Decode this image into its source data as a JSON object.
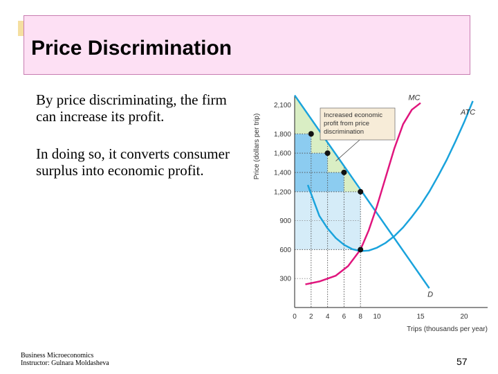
{
  "slide": {
    "title": "Price Discrimination",
    "paragraph1": "By price discriminating, the firm can increase its profit.",
    "paragraph2": "In doing so, it converts consumer surplus into economic profit.",
    "footer_line1": "Business Microeconomics",
    "footer_line2": "Instructor: Gulnara Moldasheva",
    "page_number": "57"
  },
  "colors": {
    "title_box": "#fde0f4",
    "accent": "#f5dfa0",
    "demand": "#1aa3dc",
    "atc": "#1aa3dc",
    "mc": "#e0157d",
    "profit_fill": "#7fc6ee",
    "extra_profit": "#d9eec4",
    "revenue_fill": "#d5ecf8"
  },
  "chart_data": {
    "type": "line",
    "xlabel": "Trips (thousands per year)",
    "ylabel": "Price (dollars per trip)",
    "x_ticks": [
      0,
      2,
      4,
      6,
      8,
      10,
      15,
      20
    ],
    "y_ticks": [
      300,
      600,
      900,
      1200,
      1400,
      1600,
      1800,
      2100
    ],
    "y_tick_labels": [
      "300",
      "600",
      "900",
      "1,200",
      "1,400",
      "1,600",
      "1,800",
      "2,100"
    ],
    "xlim": [
      0,
      22
    ],
    "ylim": [
      0,
      2300
    ],
    "series": [
      {
        "name": "D",
        "x": [
          0,
          16
        ],
        "y": [
          2200,
          200
        ]
      },
      {
        "name": "MC",
        "x": [
          1.3,
          3,
          5,
          6.5,
          8,
          9,
          10,
          11,
          12,
          13,
          14,
          15
        ],
        "y": [
          240,
          270,
          330,
          430,
          600,
          800,
          1050,
          1350,
          1650,
          1900,
          2050,
          2120
        ]
      },
      {
        "name": "ATC",
        "x": [
          1.6,
          3,
          4,
          5,
          6,
          7,
          8,
          9,
          10,
          11,
          12,
          13,
          14,
          15,
          16,
          17,
          18,
          19,
          20,
          21
        ],
        "y": [
          1270,
          950,
          820,
          720,
          650,
          605,
          585,
          590,
          620,
          670,
          740,
          830,
          940,
          1060,
          1200,
          1360,
          1530,
          1720,
          1920,
          2140
        ]
      }
    ],
    "price_points": [
      {
        "x": 2,
        "y": 1800
      },
      {
        "x": 4,
        "y": 1600
      },
      {
        "x": 6,
        "y": 1400
      },
      {
        "x": 8,
        "y": 1200
      },
      {
        "x": 8,
        "y": 600
      }
    ],
    "annotation": "Increased economic profit from price discrimination"
  }
}
